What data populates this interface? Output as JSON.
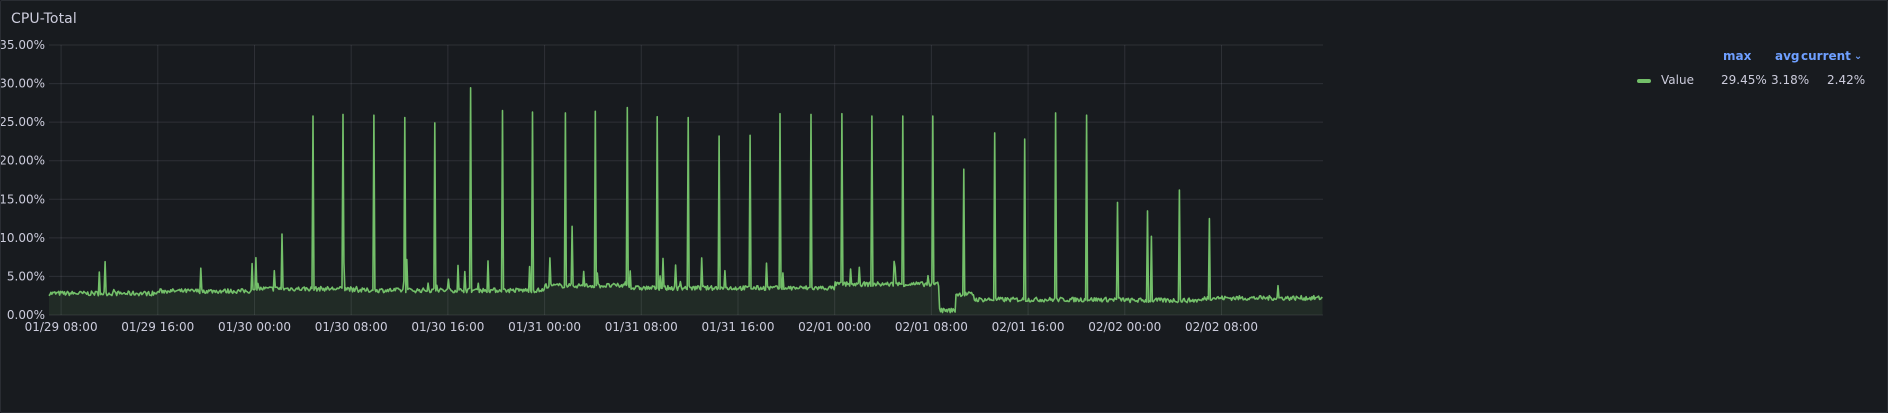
{
  "panel": {
    "title": "CPU-Total"
  },
  "legend": {
    "headers": {
      "max": "max",
      "avg": "avg",
      "current": "current"
    },
    "series": [
      {
        "name": "Value",
        "max": "29.45%",
        "avg": "3.18%",
        "current": "2.42%",
        "color": "#73bf69"
      }
    ]
  },
  "chart_data": {
    "type": "line",
    "y_tick_labels": [
      "0.00%",
      "5.00%",
      "10.00%",
      "15.00%",
      "20.00%",
      "25.00%",
      "30.00%",
      "35.00%"
    ],
    "ylim": [
      0,
      35
    ],
    "x_tick_labels": [
      "01/29 08:00",
      "01/29 16:00",
      "01/30 00:00",
      "01/30 08:00",
      "01/30 16:00",
      "01/31 00:00",
      "01/31 08:00",
      "01/31 16:00",
      "02/01 00:00",
      "02/01 08:00",
      "02/01 16:00",
      "02/02 00:00",
      "02/02 08:00"
    ],
    "grid": true,
    "legend_placement": "right",
    "series": [
      {
        "name": "Value",
        "color": "#73bf69",
        "baseline_segments": [
          {
            "from_hour": -1,
            "to_hour": 8,
            "value": 2.8
          },
          {
            "from_hour": 8,
            "to_hour": 16,
            "value": 3.1
          },
          {
            "from_hour": 16,
            "to_hour": 24,
            "value": 3.4
          },
          {
            "from_hour": 24,
            "to_hour": 40,
            "value": 3.2
          },
          {
            "from_hour": 40,
            "to_hour": 47,
            "value": 3.8
          },
          {
            "from_hour": 47,
            "to_hour": 64,
            "value": 3.5
          },
          {
            "from_hour": 64,
            "to_hour": 72.6,
            "value": 4.0
          },
          {
            "from_hour": 72.6,
            "to_hour": 74,
            "value": 0.6
          },
          {
            "from_hour": 74,
            "to_hour": 75.5,
            "value": 2.7
          },
          {
            "from_hour": 75.5,
            "to_hour": 88,
            "value": 2.0
          },
          {
            "from_hour": 88,
            "to_hour": 94.5,
            "value": 1.9
          },
          {
            "from_hour": 94.5,
            "to_hour": 104.4,
            "value": 2.2
          }
        ],
        "spikes": [
          {
            "hour": 20.8,
            "value": 25.8
          },
          {
            "hour": 23.3,
            "value": 26.0
          },
          {
            "hour": 25.9,
            "value": 25.9
          },
          {
            "hour": 28.4,
            "value": 25.6
          },
          {
            "hour": 30.9,
            "value": 24.9
          },
          {
            "hour": 33.9,
            "value": 29.45
          },
          {
            "hour": 36.5,
            "value": 26.5
          },
          {
            "hour": 39.0,
            "value": 26.3
          },
          {
            "hour": 41.7,
            "value": 26.2
          },
          {
            "hour": 42.3,
            "value": 11.5
          },
          {
            "hour": 44.2,
            "value": 26.4
          },
          {
            "hour": 46.8,
            "value": 26.9
          },
          {
            "hour": 49.3,
            "value": 25.7
          },
          {
            "hour": 51.9,
            "value": 25.6
          },
          {
            "hour": 54.4,
            "value": 23.2
          },
          {
            "hour": 57.0,
            "value": 23.3
          },
          {
            "hour": 59.5,
            "value": 26.1
          },
          {
            "hour": 62.0,
            "value": 26.0
          },
          {
            "hour": 64.6,
            "value": 26.1
          },
          {
            "hour": 67.1,
            "value": 25.8
          },
          {
            "hour": 69.6,
            "value": 25.8
          },
          {
            "hour": 72.1,
            "value": 25.8
          },
          {
            "hour": 74.7,
            "value": 18.9
          },
          {
            "hour": 77.2,
            "value": 23.6
          },
          {
            "hour": 79.7,
            "value": 22.8
          },
          {
            "hour": 82.3,
            "value": 26.2
          },
          {
            "hour": 84.8,
            "value": 25.9
          },
          {
            "hour": 87.4,
            "value": 14.6
          },
          {
            "hour": 89.9,
            "value": 13.5
          },
          {
            "hour": 90.2,
            "value": 10.2
          },
          {
            "hour": 92.5,
            "value": 16.2
          },
          {
            "hour": 95.0,
            "value": 12.5
          },
          {
            "hour": 100.7,
            "value": 3.8
          },
          {
            "hour": 18.3,
            "value": 10.5
          }
        ],
        "noise_amplitude": 0.6,
        "small_spike_max": 8.8
      }
    ]
  }
}
